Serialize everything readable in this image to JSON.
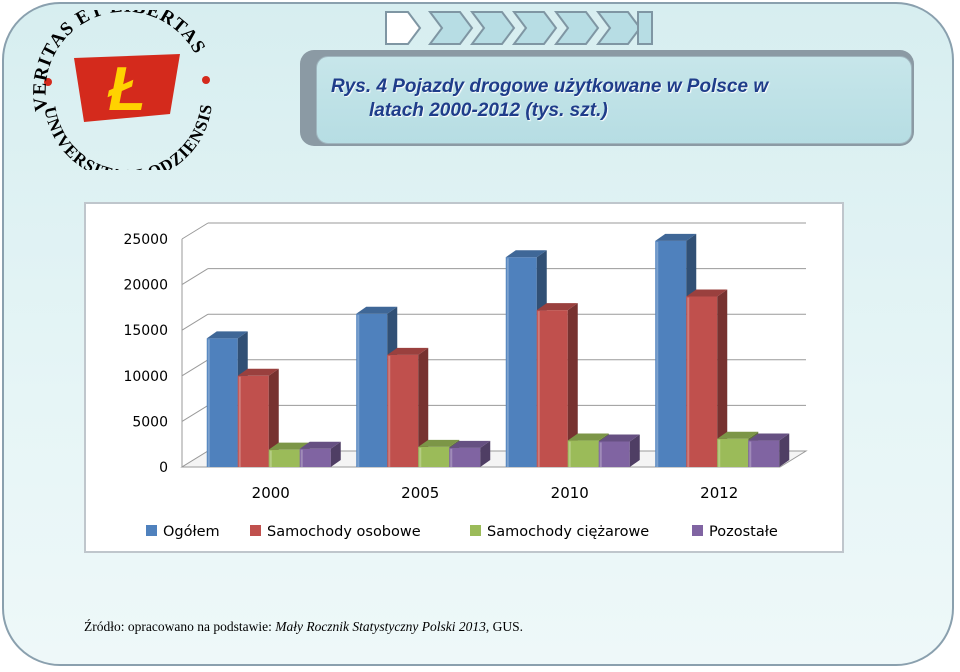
{
  "logo": {
    "text_top": "VERITAS ET LIBERTAS",
    "text_bottom": "UNIVERSITAS LODZIENSIS",
    "mark": "Ł",
    "color": "#d42a1c",
    "mark_color": "#ffd200"
  },
  "title": {
    "line1": "Rys. 4 Pojazdy drogowe użytkowane w Polsce w",
    "line2": "latach 2000-2012 (tys. szt.)"
  },
  "source": {
    "prefix": "Źródło: opracowano na podstawie: ",
    "publication": "Mały Rocznik Statystyczny Polski 2013",
    "suffix": ", GUS."
  },
  "chart_data": {
    "type": "bar",
    "title": "",
    "xlabel": "",
    "ylabel": "",
    "categories": [
      "2000",
      "2005",
      "2010",
      "2012"
    ],
    "ylim": [
      0,
      25000
    ],
    "yticks": [
      "0",
      "5000",
      "10000",
      "15000",
      "20000",
      "25000"
    ],
    "ytick_values": [
      0,
      5000,
      10000,
      15000,
      20000,
      25000
    ],
    "grid": true,
    "legend_position": "bottom",
    "series": [
      {
        "name": "Ogółem",
        "color": "#4f81bd",
        "values": [
          14100,
          16800,
          23000,
          24800
        ]
      },
      {
        "name": "Samochody osobowe",
        "color": "#c0504d",
        "values": [
          10000,
          12300,
          17200,
          18700
        ]
      },
      {
        "name": "Samochody ciężarowe",
        "color": "#9bbb59",
        "values": [
          1900,
          2200,
          2900,
          3100
        ]
      },
      {
        "name": "Pozostałe",
        "color": "#8064a2",
        "values": [
          2000,
          2100,
          2800,
          2900
        ]
      }
    ]
  }
}
